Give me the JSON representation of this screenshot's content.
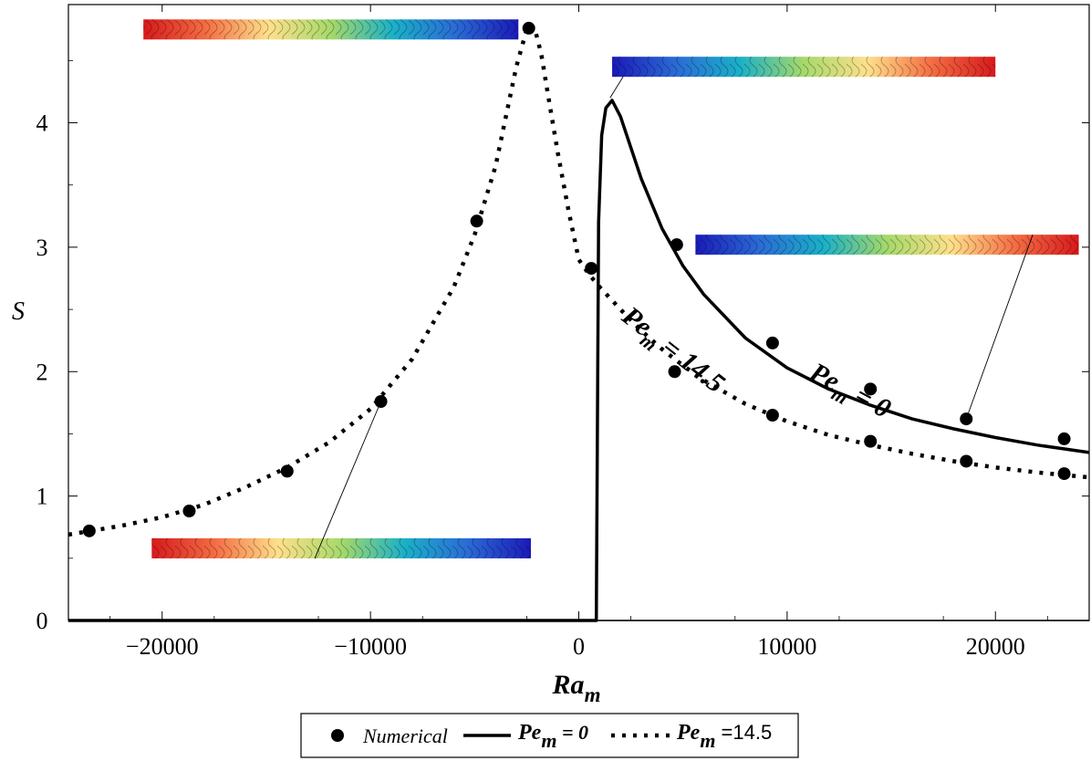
{
  "chart_data": {
    "type": "line",
    "xlabel": "Ra",
    "xlabel_sub": "m",
    "ylabel": "S",
    "xlim": [
      -24500,
      24500
    ],
    "ylim": [
      0,
      4.95
    ],
    "xticks": [
      -20000,
      -10000,
      0,
      10000,
      20000
    ],
    "xtick_labels": [
      "−20000",
      "−10000",
      "0",
      "10000",
      "20000"
    ],
    "yticks": [
      0,
      1,
      2,
      3,
      4
    ],
    "ytick_labels": [
      "0",
      "1",
      "2",
      "3",
      "4"
    ],
    "grid": false,
    "series": [
      {
        "name": "Pe_m = 0",
        "style": "solid",
        "x": [
          -24500,
          840,
          840,
          950,
          1100,
          1300,
          1600,
          2000,
          2500,
          3000,
          4000,
          5000,
          6000,
          8000,
          10000,
          12000,
          14000,
          16000,
          18000,
          20000,
          22000,
          24500
        ],
        "y": [
          0,
          0,
          0,
          3.2,
          3.9,
          4.12,
          4.18,
          4.05,
          3.8,
          3.55,
          3.15,
          2.85,
          2.62,
          2.27,
          2.03,
          1.86,
          1.73,
          1.62,
          1.54,
          1.47,
          1.41,
          1.35
        ]
      },
      {
        "name": "Pe_m = 14.5",
        "style": "dotted",
        "x": [
          -24500,
          -22000,
          -20000,
          -18000,
          -16000,
          -14000,
          -12000,
          -10000,
          -8000,
          -6000,
          -5000,
          -4000,
          -3500,
          -3000,
          -2500,
          -2300,
          -2100,
          -1800,
          -1500,
          -1000,
          -500,
          0,
          500,
          1000,
          2000,
          3000,
          4000,
          5000,
          6000,
          8000,
          10000,
          12000,
          14000,
          16000,
          18000,
          20000,
          22000,
          24500
        ],
        "y": [
          0.69,
          0.76,
          0.83,
          0.93,
          1.07,
          1.23,
          1.43,
          1.7,
          2.1,
          2.68,
          3.1,
          3.65,
          4.05,
          4.45,
          4.75,
          4.79,
          4.75,
          4.55,
          4.25,
          3.75,
          3.3,
          2.9,
          2.78,
          2.68,
          2.5,
          2.33,
          2.18,
          2.05,
          1.93,
          1.74,
          1.6,
          1.49,
          1.41,
          1.34,
          1.28,
          1.23,
          1.19,
          1.15
        ]
      }
    ],
    "numerical": {
      "name": "Numerical",
      "points": [
        {
          "x": -23500,
          "y": 0.72
        },
        {
          "x": -18700,
          "y": 0.88
        },
        {
          "x": -14000,
          "y": 1.2
        },
        {
          "x": -9500,
          "y": 1.76
        },
        {
          "x": -4900,
          "y": 3.21
        },
        {
          "x": -2400,
          "y": 4.76
        },
        {
          "x": 600,
          "y": 2.83
        },
        {
          "x": 4700,
          "y": 3.02
        },
        {
          "x": 9300,
          "y": 2.23
        },
        {
          "x": 14000,
          "y": 1.86
        },
        {
          "x": 18600,
          "y": 1.62
        },
        {
          "x": 23300,
          "y": 1.46
        },
        {
          "x": 4600,
          "y": 2.0
        },
        {
          "x": 9300,
          "y": 1.65
        },
        {
          "x": 14000,
          "y": 1.44
        },
        {
          "x": 18600,
          "y": 1.28
        },
        {
          "x": 23300,
          "y": 1.18
        }
      ]
    },
    "annotations": [
      {
        "label": "Pe",
        "sub": "m",
        "suffix": " = 0",
        "x": 11000,
        "y": 1.95,
        "angle": 28
      },
      {
        "label": "Pe",
        "sub": "m",
        "suffix": " = 14.5",
        "x": 2000,
        "y": 2.42,
        "angle": 38
      }
    ],
    "insets": [
      {
        "x0": -20900,
        "x1": -2900,
        "y": 4.75,
        "gradient": "red-to-blue",
        "callout": null
      },
      {
        "x0": 1600,
        "x1": 20000,
        "y": 4.45,
        "gradient": "blue-to-red",
        "callout": {
          "x": 1500,
          "y": 4.2
        }
      },
      {
        "x0": 5600,
        "x1": 24000,
        "y": 3.02,
        "gradient": "blue-to-red",
        "callout": {
          "x": 18600,
          "y": 1.62
        }
      },
      {
        "x0": -20500,
        "x1": -2300,
        "y": 0.58,
        "gradient": "red-to-blue",
        "callout": {
          "x": -9500,
          "y": 1.76
        }
      }
    ],
    "legend": {
      "position": "bottom-center",
      "entries": [
        {
          "marker": "circle",
          "label": "Numerical"
        },
        {
          "marker": "solid",
          "label": "Pe",
          "sub": "m",
          "suffix": " = 0"
        },
        {
          "marker": "dotted",
          "label": "Pe",
          "sub": "m",
          "suffix": " =14.5"
        }
      ]
    },
    "colors": {
      "line": "#000000",
      "gradient_stops": [
        "#d7191c",
        "#f46d43",
        "#fee08b",
        "#a6d96a",
        "#1ab0c8",
        "#2b6bd6",
        "#1a1ab8"
      ]
    }
  }
}
